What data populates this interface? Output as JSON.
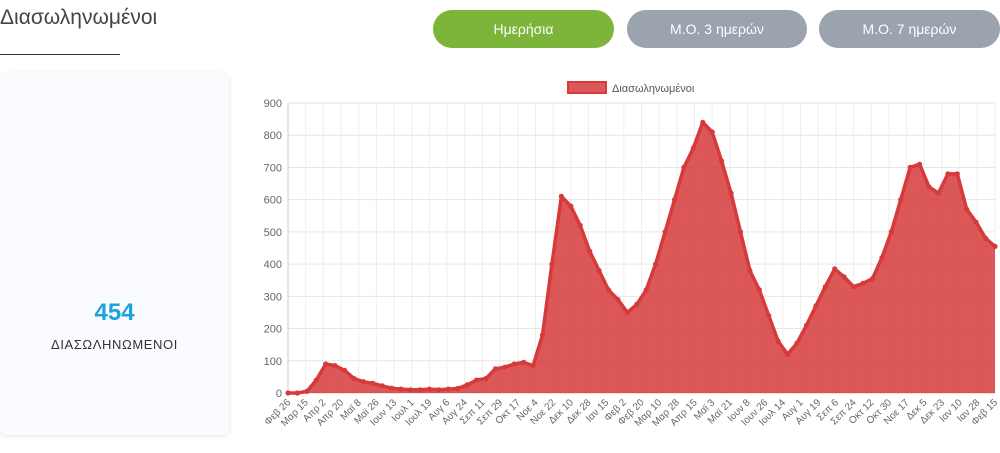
{
  "page": {
    "title": "Διασωληνωμένοι"
  },
  "tabs": [
    {
      "label": "Ημερήσια",
      "active": true
    },
    {
      "label": "Μ.Ο. 3 ημερών",
      "active": false
    },
    {
      "label": "Μ.Ο. 7 ημερών",
      "active": false
    }
  ],
  "stat": {
    "value": "454",
    "label": "ΔΙΑΣΩΛΗΝΩΜΕΝΟΙ"
  },
  "colors": {
    "accent": "#7db53a",
    "inactive": "#9aa3ae",
    "series": "#d63a3a",
    "stat": "#1aa3e0"
  },
  "chart_data": {
    "type": "area",
    "title": "",
    "xlabel": "",
    "ylabel": "",
    "ylim": [
      0,
      900
    ],
    "yticks": [
      0,
      100,
      200,
      300,
      400,
      500,
      600,
      700,
      800,
      900
    ],
    "grid": true,
    "legend_position": "top",
    "x_tick_labels": [
      "Φεβ 26",
      "Μαρ 15",
      "Απρ 2",
      "Απρ 20",
      "Μαϊ 8",
      "Μαϊ 26",
      "Ιουν 13",
      "Ιουλ 1",
      "Ιουλ 19",
      "Αυγ 6",
      "Αυγ 24",
      "Σεπ 11",
      "Σεπ 29",
      "Οκτ 17",
      "Νοε 4",
      "Νοε 22",
      "Δεκ 10",
      "Δεκ 28",
      "Ιαν 15",
      "Φεβ 2",
      "Φεβ 20",
      "Μαρ 10",
      "Μαρ 28",
      "Απρ 15",
      "Μαϊ 3",
      "Μαϊ 21",
      "Ιουν 8",
      "Ιουν 26",
      "Ιουλ 14",
      "Αυγ 1",
      "Αυγ 19",
      "Σεπ 6",
      "Σεπ 24",
      "Οκτ 12",
      "Οκτ 30",
      "Νοε 17",
      "Δεκ 5",
      "Δεκ 23",
      "Ιαν 10",
      "Ιαν 28",
      "Φεβ 15"
    ],
    "series": [
      {
        "name": "Διασωληνωμένοι",
        "values": [
          0,
          0,
          5,
          40,
          90,
          85,
          70,
          45,
          35,
          30,
          22,
          15,
          12,
          10,
          10,
          12,
          10,
          12,
          14,
          25,
          40,
          45,
          75,
          80,
          90,
          95,
          85,
          180,
          400,
          610,
          580,
          520,
          440,
          380,
          320,
          290,
          250,
          275,
          320,
          400,
          500,
          600,
          700,
          760,
          840,
          810,
          720,
          620,
          500,
          380,
          320,
          240,
          160,
          120,
          155,
          210,
          270,
          330,
          385,
          360,
          330,
          340,
          355,
          420,
          500,
          600,
          700,
          710,
          640,
          620,
          680,
          680,
          570,
          530,
          480,
          455
        ]
      }
    ]
  }
}
